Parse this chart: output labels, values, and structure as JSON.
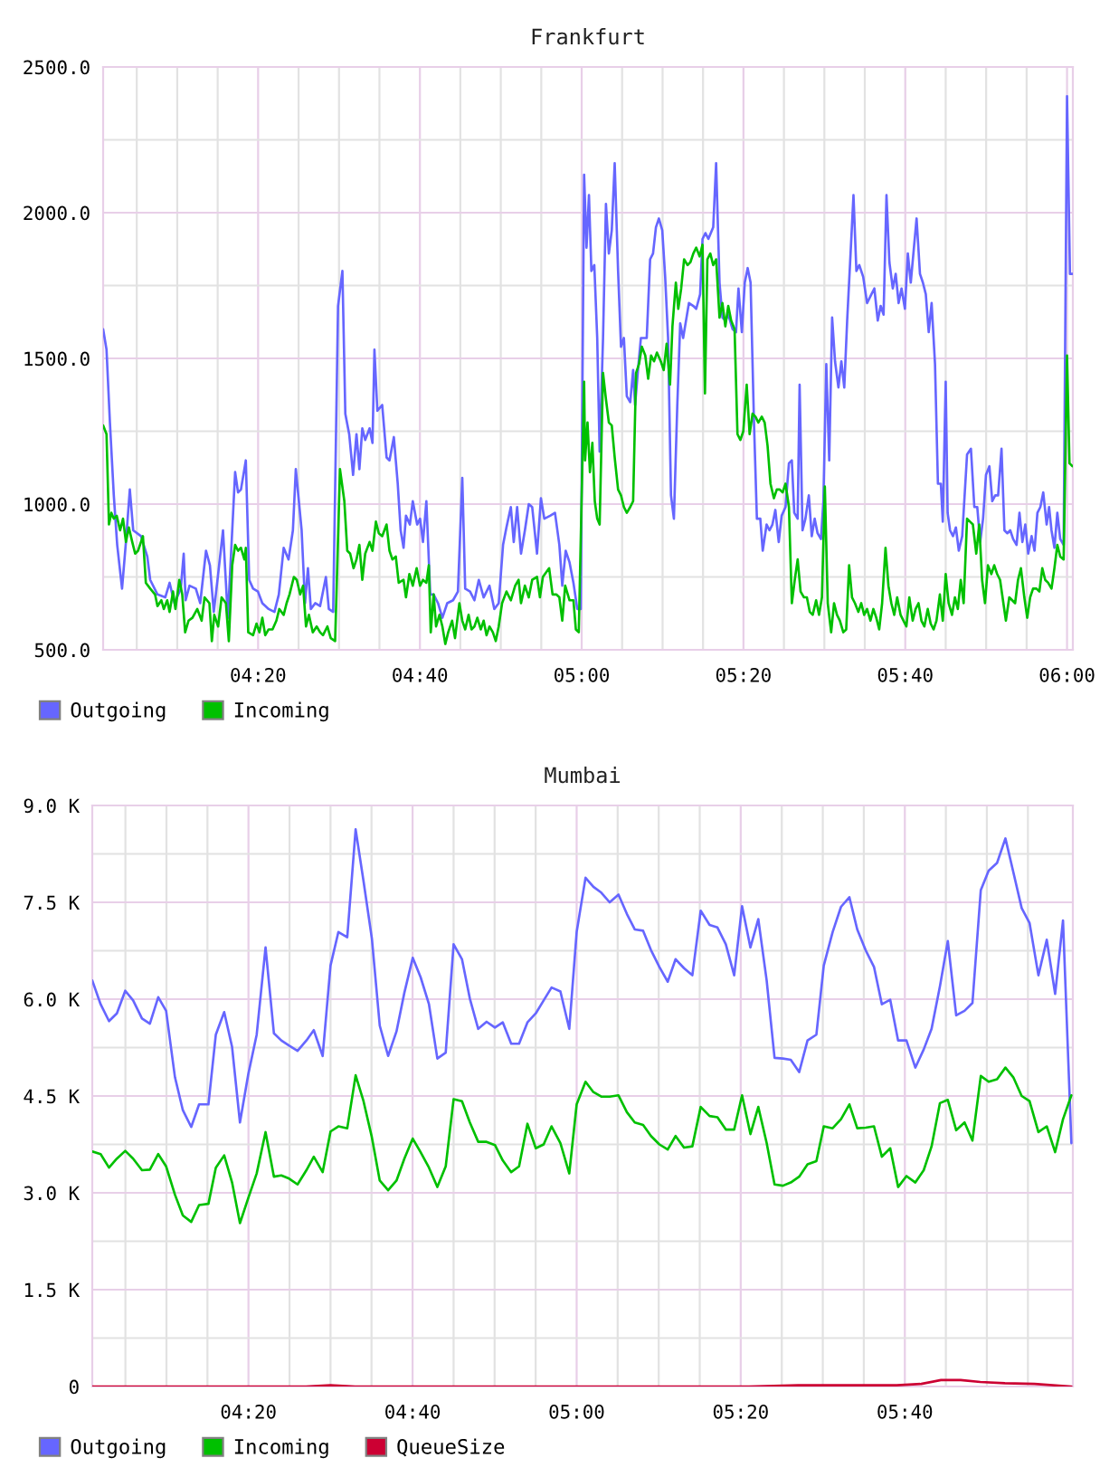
{
  "chart_data": [
    {
      "type": "line",
      "title": "Frankfurt",
      "xlim": [
        4.014,
        6.012
      ],
      "ylim": [
        500,
        2500
      ],
      "xticks": [
        {
          "value": 4.0833,
          "label": null
        },
        {
          "value": 4.1667,
          "label": null
        },
        {
          "value": 4.25,
          "label": null
        },
        {
          "value": 4.3333,
          "label": "04:20"
        },
        {
          "value": 4.4167,
          "label": null
        },
        {
          "value": 4.5,
          "label": null
        },
        {
          "value": 4.5833,
          "label": null
        },
        {
          "value": 4.6667,
          "label": "04:40"
        },
        {
          "value": 4.75,
          "label": null
        },
        {
          "value": 4.8333,
          "label": null
        },
        {
          "value": 4.9167,
          "label": null
        },
        {
          "value": 5,
          "label": "05:00"
        },
        {
          "value": 5.0833,
          "label": null
        },
        {
          "value": 5.1667,
          "label": null
        },
        {
          "value": 5.25,
          "label": null
        },
        {
          "value": 5.3333,
          "label": "05:20"
        },
        {
          "value": 5.4167,
          "label": null
        },
        {
          "value": 5.5,
          "label": null
        },
        {
          "value": 5.5833,
          "label": null
        },
        {
          "value": 5.6667,
          "label": "05:40"
        },
        {
          "value": 5.75,
          "label": null
        },
        {
          "value": 5.8333,
          "label": null
        },
        {
          "value": 5.9167,
          "label": null
        },
        {
          "value": 6,
          "label": "06:00"
        }
      ],
      "yticks": [
        {
          "value": 500,
          "label": "500.0"
        },
        {
          "value": 750,
          "label": null
        },
        {
          "value": 1000,
          "label": "1000.0"
        },
        {
          "value": 1250,
          "label": null
        },
        {
          "value": 1500,
          "label": "1500.0"
        },
        {
          "value": 1750,
          "label": null
        },
        {
          "value": 2000,
          "label": "2000.0"
        },
        {
          "value": 2250,
          "label": null
        },
        {
          "value": 2500,
          "label": "2500.0"
        }
      ],
      "grid": true,
      "legend": "bottom left",
      "series": [
        {
          "name": "Outgoing",
          "color": "#6666ff",
          "x": [
            4.014,
            4.021,
            4.028,
            4.036,
            4.043,
            4.053,
            4.061,
            4.069,
            4.076,
            4.092,
            4.105,
            4.111,
            4.126,
            4.142,
            4.151,
            4.161,
            4.174,
            4.18,
            4.184,
            4.192,
            4.205,
            4.214,
            4.226,
            4.234,
            4.242,
            4.251,
            4.261,
            4.271,
            4.286,
            4.292,
            4.298,
            4.305,
            4.308,
            4.315,
            4.323,
            4.333,
            4.342,
            4.355,
            4.367,
            4.376,
            4.386,
            4.396,
            4.405,
            4.411,
            4.423,
            4.43,
            4.436,
            4.442,
            4.451,
            4.461,
            4.473,
            4.479,
            4.488,
            4.498,
            4.507,
            4.513,
            4.521,
            4.529,
            4.536,
            4.542,
            4.548,
            4.554,
            4.563,
            4.569,
            4.573,
            4.579,
            4.589,
            4.598,
            4.604,
            4.613,
            4.621,
            4.627,
            4.633,
            4.638,
            4.646,
            4.652,
            4.661,
            4.667,
            4.673,
            4.68,
            4.688,
            4.695,
            4.704,
            4.713,
            4.723,
            4.735,
            4.745,
            4.754,
            4.76,
            4.77,
            4.779,
            4.788,
            4.798,
            4.81,
            4.82,
            4.829,
            4.838,
            4.845,
            4.854,
            4.86,
            4.867,
            4.875,
            4.883,
            4.891,
            4.898,
            4.908,
            4.916,
            4.923,
            4.935,
            4.945,
            4.954,
            4.96,
            4.967,
            4.975,
            4.983,
            4.991,
            4.998,
            5.005,
            5.01,
            5.015,
            5.02,
            5.026,
            5.032,
            5.037,
            5.044,
            5.05,
            5.056,
            5.062,
            5.068,
            5.075,
            5.081,
            5.087,
            5.093,
            5.1,
            5.106,
            5.11,
            5.116,
            5.122,
            5.134,
            5.141,
            5.147,
            5.153,
            5.159,
            5.166,
            5.172,
            5.178,
            5.184,
            5.19,
            5.197,
            5.203,
            5.209,
            5.215,
            5.221,
            5.23,
            5.236,
            5.244,
            5.249,
            5.255,
            5.261,
            5.271,
            5.277,
            5.284,
            5.29,
            5.296,
            5.302,
            5.311,
            5.318,
            5.323,
            5.33,
            5.336,
            5.342,
            5.348,
            5.355,
            5.361,
            5.368,
            5.373,
            5.381,
            5.387,
            5.393,
            5.399,
            5.406,
            5.412,
            5.42,
            5.427,
            5.433,
            5.438,
            5.445,
            5.449,
            5.455,
            5.461,
            5.468,
            5.474,
            5.48,
            5.486,
            5.493,
            5.498,
            5.504,
            5.51,
            5.516,
            5.522,
            5.529,
            5.535,
            5.541,
            5.547,
            5.554,
            5.56,
            5.566,
            5.572,
            5.58,
            5.588,
            5.597,
            5.603,
            5.61,
            5.616,
            5.622,
            5.628,
            5.634,
            5.641,
            5.647,
            5.653,
            5.659,
            5.666,
            5.672,
            5.678,
            5.684,
            5.69,
            5.697,
            5.703,
            5.709,
            5.715,
            5.721,
            5.728,
            5.734,
            5.74,
            5.744,
            5.75,
            5.754,
            5.759,
            5.765,
            5.771,
            5.777,
            5.784,
            5.794,
            5.802,
            5.809,
            5.815,
            5.821,
            5.827,
            5.833,
            5.84,
            5.846,
            5.852,
            5.858,
            5.865,
            5.871,
            5.877,
            5.883,
            5.889,
            5.896,
            5.902,
            5.908,
            5.914,
            5.92,
            5.927,
            5.933,
            5.939,
            5.945,
            5.951,
            5.958,
            5.963,
            5.968,
            5.974,
            5.98,
            5.986,
            5.993,
            6.0,
            6.006,
            6.011
          ],
          "values": [
            1600,
            1530,
            1280,
            1030,
            860,
            710,
            870,
            1050,
            910,
            890,
            820,
            740,
            690,
            680,
            730,
            660,
            710,
            830,
            670,
            720,
            710,
            660,
            840,
            790,
            630,
            760,
            910,
            610,
            1110,
            1040,
            1050,
            1120,
            1150,
            740,
            710,
            700,
            660,
            640,
            630,
            690,
            850,
            810,
            910,
            1120,
            910,
            660,
            780,
            640,
            660,
            650,
            750,
            640,
            630,
            1680,
            1800,
            1310,
            1240,
            1100,
            1240,
            1120,
            1260,
            1220,
            1260,
            1210,
            1530,
            1320,
            1340,
            1160,
            1150,
            1230,
            1070,
            910,
            850,
            960,
            930,
            1010,
            930,
            950,
            870,
            1010,
            690,
            690,
            660,
            610,
            660,
            670,
            700,
            1090,
            710,
            700,
            670,
            740,
            680,
            720,
            640,
            660,
            860,
            920,
            990,
            870,
            990,
            830,
            910,
            1000,
            990,
            830,
            1020,
            950,
            960,
            970,
            860,
            720,
            840,
            800,
            730,
            640,
            640,
            2130,
            1880,
            2060,
            1800,
            1820,
            1570,
            1180,
            1570,
            2030,
            1860,
            1940,
            2170,
            1800,
            1540,
            1570,
            1370,
            1350,
            1460,
            1340,
            1460,
            1570,
            1570,
            1840,
            1860,
            1950,
            1980,
            1940,
            1780,
            1570,
            1030,
            950,
            1340,
            1620,
            1570,
            1630,
            1690,
            1680,
            1670,
            1720,
            1910,
            1930,
            1910,
            1950,
            2170,
            1760,
            1640,
            1630,
            1650,
            1600,
            1590,
            1740,
            1590,
            1760,
            1810,
            1760,
            1280,
            950,
            950,
            840,
            930,
            910,
            930,
            980,
            870,
            960,
            990,
            1140,
            1150,
            970,
            950,
            1410,
            910,
            950,
            1030,
            890,
            950,
            900,
            880,
            1010,
            1480,
            1150,
            1640,
            1490,
            1400,
            1490,
            1400,
            1630,
            1860,
            2060,
            1800,
            1820,
            1780,
            1690,
            1720,
            1740,
            1630,
            1680,
            1650,
            2060,
            1830,
            1740,
            1790,
            1690,
            1740,
            1670,
            1860,
            1760,
            1870,
            1980,
            1790,
            1760,
            1720,
            1590,
            1690,
            1480,
            1070,
            1070,
            940,
            1420,
            970,
            910,
            890,
            920,
            840,
            890,
            1170,
            1190,
            990,
            990,
            870,
            950,
            1100,
            1130,
            1010,
            1030,
            1030,
            1190,
            910,
            900,
            910,
            880,
            860,
            970,
            870,
            930,
            830,
            890,
            840,
            970,
            990,
            1040,
            930,
            990,
            910,
            850,
            970,
            880,
            860,
            2400,
            1790,
            1790
          ]
        },
        {
          "name": "Incoming",
          "color": "#00c000",
          "x": [
            4.014,
            4.021,
            4.026,
            4.031,
            4.036,
            4.042,
            4.049,
            4.055,
            4.061,
            4.067,
            4.074,
            4.08,
            4.086,
            4.096,
            4.102,
            4.111,
            4.121,
            4.126,
            4.134,
            4.139,
            4.146,
            4.151,
            4.158,
            4.163,
            4.171,
            4.177,
            4.183,
            4.19,
            4.198,
            4.208,
            4.217,
            4.223,
            4.233,
            4.238,
            4.243,
            4.251,
            4.258,
            4.267,
            4.273,
            4.28,
            4.286,
            4.292,
            4.298,
            4.305,
            4.308,
            4.313,
            4.323,
            4.33,
            4.336,
            4.342,
            4.348,
            4.355,
            4.363,
            4.371,
            4.377,
            4.386,
            4.392,
            4.398,
            4.407,
            4.413,
            4.42,
            4.426,
            4.432,
            4.438,
            4.446,
            4.454,
            4.461,
            4.467,
            4.476,
            4.483,
            4.492,
            4.502,
            4.511,
            4.517,
            4.523,
            4.53,
            4.536,
            4.542,
            4.548,
            4.554,
            4.563,
            4.569,
            4.576,
            4.582,
            4.589,
            4.598,
            4.604,
            4.61,
            4.617,
            4.623,
            4.633,
            4.638,
            4.645,
            4.652,
            4.66,
            4.667,
            4.673,
            4.68,
            4.685,
            4.689,
            4.695,
            4.7,
            4.707,
            4.713,
            4.719,
            4.725,
            4.733,
            4.739,
            4.748,
            4.754,
            4.76,
            4.767,
            4.773,
            4.779,
            4.785,
            4.792,
            4.798,
            4.804,
            4.81,
            4.817,
            4.823,
            4.829,
            4.836,
            4.845,
            4.854,
            4.863,
            4.87,
            4.875,
            4.883,
            4.891,
            4.898,
            4.908,
            4.914,
            4.92,
            4.933,
            4.94,
            4.948,
            4.954,
            4.96,
            4.966,
            4.975,
            4.983,
            4.988,
            4.994,
            5.005,
            5.007,
            5.012,
            5.017,
            5.022,
            5.027,
            5.032,
            5.037,
            5.044,
            5.05,
            5.056,
            5.062,
            5.068,
            5.075,
            5.081,
            5.087,
            5.093,
            5.1,
            5.106,
            5.112,
            5.118,
            5.124,
            5.131,
            5.137,
            5.143,
            5.149,
            5.155,
            5.163,
            5.169,
            5.175,
            5.182,
            5.187,
            5.194,
            5.199,
            5.205,
            5.211,
            5.218,
            5.224,
            5.23,
            5.236,
            5.243,
            5.249,
            5.254,
            5.259,
            5.265,
            5.271,
            5.277,
            5.284,
            5.29,
            5.296,
            5.302,
            5.308,
            5.315,
            5.321,
            5.327,
            5.333,
            5.34,
            5.346,
            5.352,
            5.358,
            5.364,
            5.371,
            5.377,
            5.383,
            5.389,
            5.396,
            5.402,
            5.408,
            5.414,
            5.42,
            5.427,
            5.433,
            5.439,
            5.445,
            5.451,
            5.458,
            5.464,
            5.47,
            5.476,
            5.483,
            5.489,
            5.495,
            5.501,
            5.507,
            5.514,
            5.52,
            5.526,
            5.532,
            5.539,
            5.545,
            5.551,
            5.557,
            5.563,
            5.57,
            5.576,
            5.582,
            5.588,
            5.595,
            5.601,
            5.607,
            5.613,
            5.619,
            5.626,
            5.632,
            5.638,
            5.644,
            5.65,
            5.657,
            5.663,
            5.669,
            5.675,
            5.682,
            5.688,
            5.694,
            5.7,
            5.706,
            5.713,
            5.719,
            5.725,
            5.731,
            5.738,
            5.744,
            5.75,
            5.756,
            5.763,
            5.769,
            5.775,
            5.781,
            5.787,
            5.794,
            5.8,
            5.806,
            5.813,
            5.819,
            5.825,
            5.831,
            5.837,
            5.844,
            5.85,
            5.856,
            5.862,
            5.868,
            5.874,
            5.881,
            5.887,
            5.893,
            5.899,
            5.905,
            5.912,
            5.918,
            5.924,
            5.93,
            5.937,
            5.943,
            5.949,
            5.955,
            5.961,
            5.968,
            5.974,
            5.98,
            5.986,
            5.993,
            6.0,
            6.005,
            6.011
          ],
          "values": [
            1270,
            1240,
            930,
            970,
            950,
            960,
            910,
            950,
            870,
            920,
            870,
            830,
            840,
            890,
            730,
            710,
            690,
            650,
            670,
            640,
            670,
            630,
            700,
            640,
            740,
            690,
            560,
            600,
            610,
            640,
            600,
            680,
            660,
            530,
            620,
            580,
            680,
            660,
            530,
            790,
            860,
            840,
            850,
            810,
            850,
            560,
            550,
            590,
            560,
            610,
            550,
            570,
            570,
            600,
            640,
            620,
            660,
            690,
            750,
            740,
            690,
            720,
            580,
            620,
            560,
            580,
            560,
            550,
            580,
            540,
            530,
            1120,
            1010,
            840,
            830,
            780,
            810,
            860,
            740,
            830,
            870,
            840,
            940,
            900,
            890,
            930,
            840,
            810,
            820,
            730,
            740,
            680,
            760,
            720,
            780,
            720,
            740,
            730,
            790,
            560,
            690,
            580,
            620,
            580,
            520,
            560,
            600,
            540,
            660,
            600,
            570,
            620,
            570,
            580,
            610,
            570,
            600,
            550,
            580,
            560,
            530,
            580,
            660,
            700,
            670,
            720,
            740,
            660,
            720,
            680,
            740,
            750,
            680,
            750,
            780,
            690,
            690,
            680,
            600,
            720,
            670,
            670,
            570,
            560,
            1420,
            1150,
            1280,
            1110,
            1210,
            1010,
            950,
            930,
            1450,
            1360,
            1280,
            1270,
            1160,
            1050,
            1030,
            990,
            970,
            990,
            1010,
            1450,
            1480,
            1540,
            1510,
            1430,
            1510,
            1490,
            1520,
            1490,
            1460,
            1550,
            1410,
            1610,
            1760,
            1670,
            1740,
            1840,
            1820,
            1830,
            1860,
            1880,
            1850,
            1890,
            1380,
            1840,
            1860,
            1820,
            1840,
            1640,
            1690,
            1610,
            1680,
            1630,
            1600,
            1240,
            1220,
            1250,
            1410,
            1240,
            1310,
            1300,
            1280,
            1300,
            1280,
            1200,
            1070,
            1020,
            1050,
            1050,
            1040,
            1070,
            990,
            660,
            740,
            810,
            700,
            680,
            680,
            630,
            620,
            670,
            620,
            680,
            1060,
            660,
            560,
            660,
            620,
            600,
            560,
            570,
            790,
            680,
            660,
            630,
            660,
            620,
            640,
            600,
            640,
            610,
            570,
            660,
            850,
            720,
            660,
            620,
            680,
            620,
            600,
            580,
            680,
            600,
            640,
            660,
            600,
            580,
            640,
            590,
            570,
            600,
            690,
            600,
            760,
            660,
            620,
            680,
            640,
            740,
            660,
            950,
            940,
            930,
            830,
            930,
            740,
            660,
            790,
            760,
            790,
            760,
            740,
            670,
            600,
            680,
            670,
            660,
            740,
            780,
            680,
            610,
            680,
            710,
            710,
            700,
            780,
            740,
            730,
            710,
            780,
            860,
            820,
            810,
            1510,
            1140,
            1130
          ]
        }
      ]
    },
    {
      "type": "line",
      "title": "Mumbai",
      "xlim": [
        4.016,
        6.008
      ],
      "ylim": [
        0,
        9000
      ],
      "xticks": [
        {
          "value": 4.0833,
          "label": null
        },
        {
          "value": 4.1667,
          "label": null
        },
        {
          "value": 4.25,
          "label": null
        },
        {
          "value": 4.3333,
          "label": "04:20"
        },
        {
          "value": 4.4167,
          "label": null
        },
        {
          "value": 4.5,
          "label": null
        },
        {
          "value": 4.5833,
          "label": null
        },
        {
          "value": 4.6667,
          "label": "04:40"
        },
        {
          "value": 4.75,
          "label": null
        },
        {
          "value": 4.8333,
          "label": null
        },
        {
          "value": 4.9167,
          "label": null
        },
        {
          "value": 5,
          "label": "05:00"
        },
        {
          "value": 5.0833,
          "label": null
        },
        {
          "value": 5.1667,
          "label": null
        },
        {
          "value": 5.25,
          "label": null
        },
        {
          "value": 5.3333,
          "label": "05:20"
        },
        {
          "value": 5.4167,
          "label": null
        },
        {
          "value": 5.5,
          "label": null
        },
        {
          "value": 5.5833,
          "label": null
        },
        {
          "value": 5.6667,
          "label": "05:40"
        },
        {
          "value": 5.75,
          "label": null
        },
        {
          "value": 5.8333,
          "label": null
        },
        {
          "value": 5.9167,
          "label": null
        }
      ],
      "yticks": [
        0,
        {
          "value": 750,
          "label": null
        },
        {
          "value": 1500,
          "label": "1.5 K"
        },
        {
          "value": 2250,
          "label": null
        },
        {
          "value": 3000,
          "label": "3.0 K"
        },
        {
          "value": 3750,
          "label": null
        },
        {
          "value": 4500,
          "label": "4.5 K"
        },
        {
          "value": 5250,
          "label": null
        },
        {
          "value": 6000,
          "label": "6.0 K"
        },
        {
          "value": 6750,
          "label": null
        },
        {
          "value": 7500,
          "label": "7.5 K"
        },
        {
          "value": 8250,
          "label": null
        },
        {
          "value": 9000,
          "label": "9.0 K"
        }
      ],
      "grid": true,
      "legend": "bottom left",
      "x": [
        4.016,
        4.033,
        4.05,
        4.066,
        4.083,
        4.099,
        4.117,
        4.133,
        4.15,
        4.166,
        4.184,
        4.2,
        4.217,
        4.233,
        4.252,
        4.267,
        4.284,
        4.3,
        4.316,
        4.333,
        4.35,
        4.368,
        4.385,
        4.4,
        4.416,
        4.433,
        4.451,
        4.466,
        4.484,
        4.5,
        4.516,
        4.534,
        4.551,
        4.567,
        4.584,
        4.6,
        4.617,
        4.634,
        4.65,
        4.667,
        4.683,
        4.7,
        4.717,
        4.734,
        4.75,
        4.767,
        4.783,
        4.8,
        4.817,
        4.834,
        4.85,
        4.867,
        4.883,
        4.9,
        4.917,
        4.933,
        4.949,
        4.967,
        4.985,
        5.0,
        5.018,
        5.034,
        5.05,
        5.067,
        5.085,
        5.102,
        5.118,
        5.135,
        5.151,
        5.168,
        5.185,
        5.201,
        5.218,
        5.235,
        5.252,
        5.27,
        5.286,
        5.303,
        5.32,
        5.336,
        5.353,
        5.369,
        5.386,
        5.402,
        5.419,
        5.435,
        5.452,
        5.469,
        5.487,
        5.502,
        5.52,
        5.537,
        5.554,
        5.57,
        5.587,
        5.604,
        5.62,
        5.637,
        5.653,
        5.67,
        5.688,
        5.705,
        5.721,
        5.738,
        5.754,
        5.771,
        5.788,
        5.804,
        5.821,
        5.837,
        5.854,
        5.871,
        5.887,
        5.904,
        5.92,
        5.938,
        5.955,
        5.972,
        5.988,
        6.005
      ],
      "series": [
        {
          "name": "Outgoing",
          "color": "#6666ff",
          "values": [
            6290,
            5920,
            5660,
            5780,
            6130,
            5980,
            5700,
            5620,
            6030,
            5820,
            4790,
            4280,
            4020,
            4370,
            4370,
            5450,
            5800,
            5260,
            4090,
            4840,
            5450,
            6800,
            5470,
            5360,
            5280,
            5200,
            5360,
            5520,
            5120,
            6520,
            7040,
            6960,
            8630,
            7830,
            6940,
            5590,
            5120,
            5500,
            6100,
            6640,
            6340,
            5920,
            5080,
            5170,
            6850,
            6620,
            6010,
            5540,
            5650,
            5560,
            5640,
            5310,
            5310,
            5640,
            5780,
            5980,
            6180,
            6120,
            5540,
            7040,
            7880,
            7740,
            7650,
            7500,
            7620,
            7320,
            7080,
            7060,
            6760,
            6500,
            6270,
            6620,
            6480,
            6370,
            7370,
            7150,
            7110,
            6850,
            6370,
            7440,
            6800,
            7240,
            6290,
            5090,
            5080,
            5060,
            4870,
            5360,
            5450,
            6520,
            7040,
            7430,
            7580,
            7080,
            6760,
            6500,
            5920,
            5990,
            5360,
            5360,
            4940,
            5220,
            5540,
            6200,
            6900,
            5750,
            5820,
            5940,
            7690,
            7990,
            8110,
            8490,
            7970,
            7410,
            7180,
            6370,
            6920,
            6080,
            7220,
            3770
          ]
        },
        {
          "name": "Incoming",
          "color": "#00c000",
          "values": [
            3640,
            3600,
            3390,
            3530,
            3650,
            3530,
            3350,
            3360,
            3600,
            3410,
            2970,
            2650,
            2550,
            2810,
            2830,
            3390,
            3580,
            3160,
            2530,
            2920,
            3300,
            3940,
            3250,
            3270,
            3220,
            3130,
            3350,
            3560,
            3320,
            3950,
            4030,
            4000,
            4820,
            4420,
            3860,
            3190,
            3040,
            3190,
            3530,
            3840,
            3630,
            3390,
            3090,
            3410,
            4450,
            4420,
            4090,
            3790,
            3790,
            3740,
            3500,
            3320,
            3410,
            4070,
            3690,
            3750,
            4030,
            3770,
            3300,
            4370,
            4720,
            4560,
            4490,
            4490,
            4510,
            4250,
            4090,
            4050,
            3880,
            3750,
            3670,
            3880,
            3700,
            3720,
            4330,
            4190,
            4170,
            3980,
            3980,
            4510,
            3910,
            4330,
            3770,
            3130,
            3110,
            3160,
            3250,
            3440,
            3490,
            4030,
            4000,
            4140,
            4370,
            4000,
            4010,
            4030,
            3560,
            3690,
            3090,
            3260,
            3160,
            3350,
            3720,
            4390,
            4440,
            3970,
            4090,
            3810,
            4810,
            4720,
            4760,
            4940,
            4790,
            4500,
            4420,
            3940,
            4030,
            3630,
            4140,
            4510
          ]
        },
        {
          "name": "QueueSize",
          "color": "#cc0033",
          "x": [
            4.016,
            4.45,
            4.5,
            4.55,
            5.35,
            5.45,
            5.65,
            5.7,
            5.74,
            5.78,
            5.82,
            5.87,
            5.93,
            6.005
          ],
          "values": [
            0,
            0,
            20,
            0,
            0,
            20,
            20,
            40,
            100,
            100,
            70,
            50,
            40,
            0
          ]
        }
      ]
    }
  ]
}
